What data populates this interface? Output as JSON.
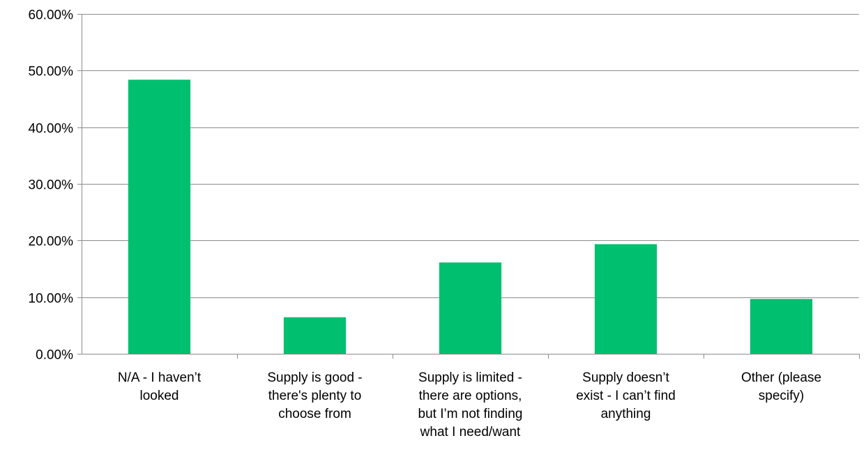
{
  "chart_data": {
    "type": "bar",
    "title": "",
    "xlabel": "",
    "ylabel": "",
    "ylim": [
      0,
      0.6
    ],
    "ytick_step": 0.1,
    "ytick_labels": [
      "0.00%",
      "10.00%",
      "20.00%",
      "30.00%",
      "40.00%",
      "50.00%",
      "60.00%"
    ],
    "grid": true,
    "legend": "none",
    "bar_color": "#00bf6f",
    "categories": [
      [
        "N/A - I haven’t",
        "looked"
      ],
      [
        "Supply is good -",
        "there's plenty to",
        "choose from"
      ],
      [
        "Supply is limited -",
        "there are options,",
        "but I’m not finding",
        "what I need/want"
      ],
      [
        "Supply doesn’t",
        "exist - I can’t find",
        "anything"
      ],
      [
        "Other (please",
        "specify)"
      ]
    ],
    "values": [
      0.4839,
      0.0645,
      0.1613,
      0.1935,
      0.0968
    ]
  }
}
